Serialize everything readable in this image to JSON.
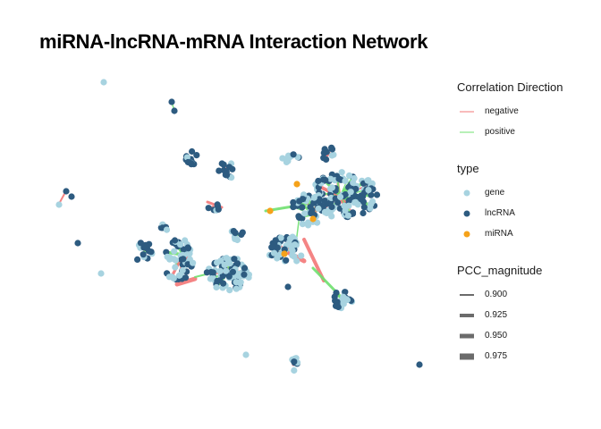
{
  "title": "miRNA-lncRNA-mRNA Interaction Network",
  "colors": {
    "negative": "#f37777",
    "positive": "#6fe06f",
    "gene": "#a7d3e0",
    "lncRNA": "#2d5b80",
    "miRNA": "#f5a21a",
    "width_key": "#6b6b6b"
  },
  "legend": {
    "direction": {
      "title": "Correlation Direction",
      "items": [
        {
          "label": "negative",
          "color_key": "negative"
        },
        {
          "label": "positive",
          "color_key": "positive"
        }
      ]
    },
    "type": {
      "title": "type",
      "items": [
        {
          "label": "gene",
          "color_key": "gene"
        },
        {
          "label": "lncRNA",
          "color_key": "lncRNA"
        },
        {
          "label": "miRNA",
          "color_key": "miRNA"
        }
      ]
    },
    "pcc": {
      "title": "PCC_magnitude",
      "items": [
        {
          "label": "0.900",
          "value": 0.9
        },
        {
          "label": "0.925",
          "value": 0.925
        },
        {
          "label": "0.950",
          "value": 0.95
        },
        {
          "label": "0.975",
          "value": 0.975
        }
      ]
    }
  }
}
